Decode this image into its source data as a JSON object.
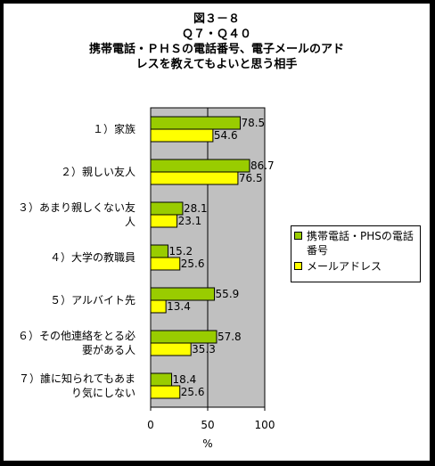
{
  "title_lines": [
    "図３－８",
    "Ｑ７・Ｑ４０",
    "携帯電話・ＰＨＳの電話番号、電子メールのアド",
    "レスを教えてもよいと思う相手"
  ],
  "chart_data": {
    "type": "bar",
    "orientation": "horizontal",
    "categories": [
      "１）家族",
      "２）親しい友人",
      "３）あまり親しくない友\n人",
      "４）大学の教職員",
      "５）アルバイト先",
      "６）その他連絡をとる必\n要がある人",
      "７）誰に知られてもあま\nり気にしない"
    ],
    "series": [
      {
        "name": "携帯電話・PHSの電話番号",
        "color": "#99cc00",
        "values": [
          78.5,
          86.7,
          28.1,
          15.2,
          55.9,
          57.8,
          18.4
        ]
      },
      {
        "name": "メールアドレス",
        "color": "#ffff00",
        "values": [
          54.6,
          76.5,
          23.1,
          25.6,
          13.4,
          35.3,
          25.6
        ]
      }
    ],
    "xlim": [
      0,
      100
    ],
    "xticks": [
      "0",
      "50",
      "100"
    ],
    "xlabel": "%",
    "plot_background": "#c0c0c0",
    "legend_position": "right"
  }
}
